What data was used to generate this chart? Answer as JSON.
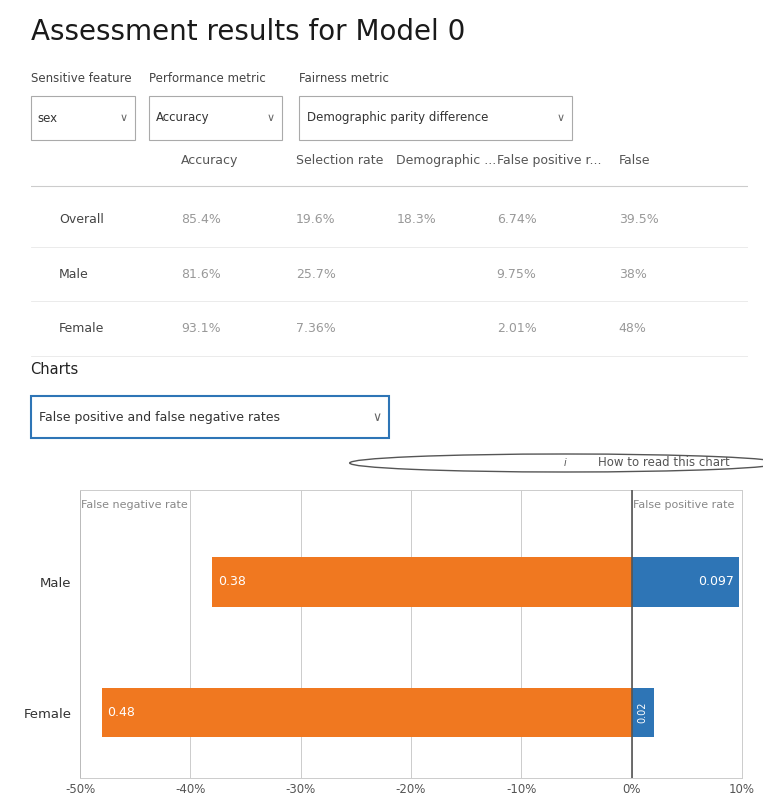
{
  "title": "Assessment results for Model 0",
  "bg_color": "#ffffff",
  "sensitive_feature_label": "Sensitive feature",
  "sensitive_feature_value": "sex",
  "performance_metric_label": "Performance metric",
  "performance_metric_value": "Accuracy",
  "fairness_metric_label": "Fairness metric",
  "fairness_metric_value": "Demographic parity difference",
  "table_headers": [
    "",
    "Accuracy",
    "Selection rate",
    "Demographic ...",
    "False positive r...",
    "False"
  ],
  "table_rows": [
    [
      "Overall",
      "85.4%",
      "19.6%",
      "18.3%",
      "6.74%",
      "39.5%"
    ],
    [
      "Male",
      "81.6%",
      "25.7%",
      "",
      "9.75%",
      "38%"
    ],
    [
      "Female",
      "93.1%",
      "7.36%",
      "",
      "2.01%",
      "48%"
    ]
  ],
  "charts_label": "Charts",
  "charts_dropdown": "False positive and false negative rates",
  "how_to_read": "How to read this chart",
  "false_negative_rate_label": "False negative rate",
  "false_positive_rate_label": "False positive rate",
  "categories": [
    "Male",
    "Female"
  ],
  "false_negative_values": [
    -0.38,
    -0.48
  ],
  "false_positive_values": [
    0.097,
    0.02
  ],
  "bar_color_negative": "#f07820",
  "bar_color_positive": "#2e75b6",
  "bar_label_color": "#ffffff",
  "xlim": [
    -0.5,
    0.1
  ],
  "xticks": [
    -0.5,
    -0.4,
    -0.3,
    -0.2,
    -0.1,
    0.0,
    0.1
  ],
  "xtick_labels": [
    "-50%",
    "-40%",
    "-30%",
    "-20%",
    "-10%",
    "0%",
    "10%"
  ],
  "grid_color": "#cccccc",
  "chart_bg": "#ffffff",
  "table_text_color": "#999999",
  "row_label_color": "#444444",
  "header_text_color": "#555555",
  "title_fontsize": 20,
  "label_fontsize": 8.5,
  "table_fontsize": 9,
  "dropdown_border_color": "#aaaaaa",
  "charts_dropdown_border_color": "#2e75b6",
  "chevron_color": "#666666"
}
